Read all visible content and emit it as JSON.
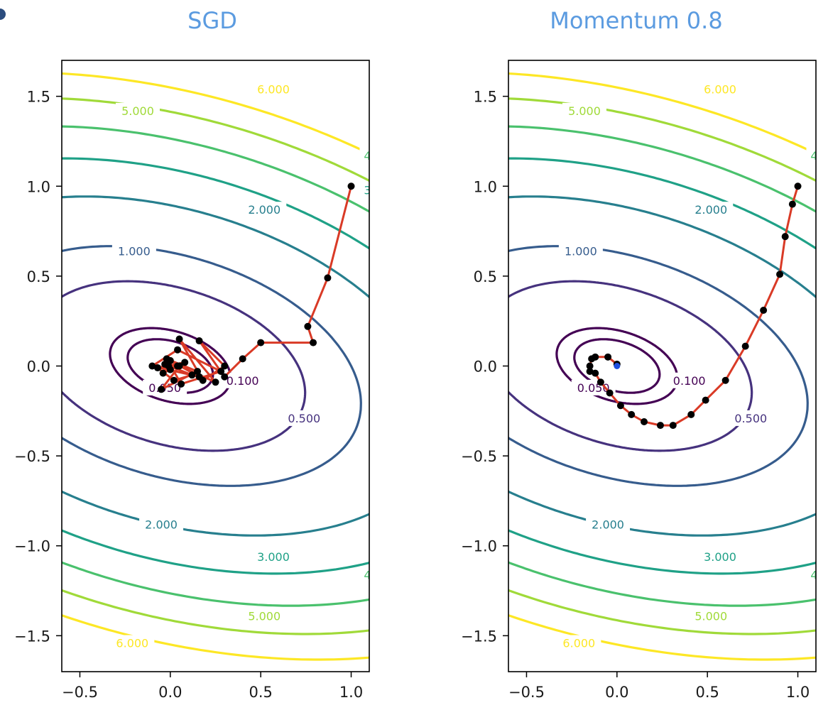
{
  "colors": {
    "title": "#5b9be0",
    "path": "#d93a26",
    "point": "#000000",
    "minimum": "#1f4fe0",
    "levels": [
      "#440154",
      "#46327e",
      "#365c8d",
      "#277f8e",
      "#1fa187",
      "#4ac16d",
      "#a0da39",
      "#fde725"
    ]
  },
  "chart_data": [
    {
      "type": "contour",
      "title": "SGD",
      "xlabel": "",
      "ylabel": "",
      "xlim": [
        -0.6,
        1.1
      ],
      "ylim": [
        -1.7,
        1.7
      ],
      "xticks": [
        "-0.5",
        "0.0",
        "0.5",
        "1.0"
      ],
      "xtick_values": [
        -0.5,
        0.0,
        0.5,
        1.0
      ],
      "yticks": [
        "-1.5",
        "-1.0",
        "-0.5",
        "0.0",
        "0.5",
        "1.0",
        "1.5"
      ],
      "ytick_values": [
        -1.5,
        -1.0,
        -0.5,
        0.0,
        0.5,
        1.0,
        1.5
      ],
      "grid": false,
      "contour_levels": [
        0.05,
        0.1,
        0.5,
        1.0,
        2.0,
        3.0,
        4.0,
        5.0,
        6.0
      ],
      "contour_labels": [
        {
          "text": "0.050",
          "x": -0.03,
          "y": -0.12
        },
        {
          "text": "0.100",
          "x": 0.4,
          "y": -0.08
        },
        {
          "text": "0.500",
          "x": 0.74,
          "y": -0.29
        },
        {
          "text": "1.000",
          "x": -0.2,
          "y": 0.64
        },
        {
          "text": "2.000",
          "x": 0.52,
          "y": 0.87
        },
        {
          "text": "2.000",
          "x": -0.05,
          "y": -0.88
        },
        {
          "text": "3.000",
          "x": 0.57,
          "y": -1.06
        },
        {
          "text": "5.000",
          "x": -0.18,
          "y": 1.42
        },
        {
          "text": "5.000",
          "x": 0.52,
          "y": -1.39
        },
        {
          "text": "6.000",
          "x": 0.57,
          "y": 1.54
        },
        {
          "text": "6.000",
          "x": -0.21,
          "y": -1.54
        },
        {
          "text": "4",
          "x": 1.09,
          "y": 1.17
        },
        {
          "text": "3",
          "x": 1.09,
          "y": 0.98
        },
        {
          "text": "4",
          "x": 1.09,
          "y": -1.16
        }
      ],
      "path": {
        "x": [
          1.0,
          0.87,
          0.76,
          0.79,
          0.5,
          0.4,
          0.3,
          0.16,
          0.3,
          0.18,
          0.05,
          0.25,
          0.05,
          -0.05,
          0.15,
          -0.02,
          0.06,
          0.28,
          0.04,
          -0.1,
          0.16,
          0.0,
          -0.04,
          0.08,
          -0.07,
          0.02,
          0.12,
          -0.03,
          0.04,
          0.0,
          -0.01
        ],
        "y": [
          1.0,
          0.49,
          0.22,
          0.13,
          0.13,
          0.04,
          -0.06,
          0.14,
          0.0,
          -0.08,
          0.15,
          -0.09,
          0.0,
          -0.13,
          -0.03,
          0.04,
          -0.1,
          -0.03,
          0.09,
          0.0,
          -0.06,
          0.03,
          -0.04,
          0.02,
          -0.01,
          -0.08,
          -0.05,
          0.01,
          0.0,
          -0.02,
          0.0
        ]
      }
    },
    {
      "type": "contour",
      "title": "Momentum 0.8",
      "xlabel": "",
      "ylabel": "",
      "xlim": [
        -0.6,
        1.1
      ],
      "ylim": [
        -1.7,
        1.7
      ],
      "xticks": [
        "-0.5",
        "0.0",
        "0.5",
        "1.0"
      ],
      "xtick_values": [
        -0.5,
        0.0,
        0.5,
        1.0
      ],
      "yticks": [
        "-1.5",
        "-1.0",
        "-0.5",
        "0.0",
        "0.5",
        "1.0",
        "1.5"
      ],
      "ytick_values": [
        -1.5,
        -1.0,
        -0.5,
        0.0,
        0.5,
        1.0,
        1.5
      ],
      "grid": false,
      "contour_levels": [
        0.05,
        0.1,
        0.5,
        1.0,
        2.0,
        3.0,
        4.0,
        5.0,
        6.0
      ],
      "contour_labels": [
        {
          "text": "0.050",
          "x": -0.13,
          "y": -0.12
        },
        {
          "text": "0.100",
          "x": 0.4,
          "y": -0.08
        },
        {
          "text": "0.500",
          "x": 0.74,
          "y": -0.29
        },
        {
          "text": "1.000",
          "x": -0.2,
          "y": 0.64
        },
        {
          "text": "2.000",
          "x": 0.52,
          "y": 0.87
        },
        {
          "text": "2.000",
          "x": -0.05,
          "y": -0.88
        },
        {
          "text": "3.000",
          "x": 0.57,
          "y": -1.06
        },
        {
          "text": "5.000",
          "x": -0.18,
          "y": 1.42
        },
        {
          "text": "5.000",
          "x": 0.52,
          "y": -1.39
        },
        {
          "text": "6.000",
          "x": 0.57,
          "y": 1.54
        },
        {
          "text": "6.000",
          "x": -0.21,
          "y": -1.54
        },
        {
          "text": "4",
          "x": 1.09,
          "y": 1.17
        },
        {
          "text": "4",
          "x": 1.09,
          "y": -1.16
        }
      ],
      "path": {
        "x": [
          1.0,
          0.97,
          0.93,
          0.9,
          0.81,
          0.71,
          0.6,
          0.49,
          0.41,
          0.31,
          0.24,
          0.15,
          0.08,
          0.02,
          -0.04,
          -0.09,
          -0.12,
          -0.15,
          -0.15,
          -0.14,
          -0.12,
          -0.05,
          0.0
        ],
        "y": [
          1.0,
          0.9,
          0.72,
          0.51,
          0.31,
          0.11,
          -0.08,
          -0.19,
          -0.27,
          -0.33,
          -0.33,
          -0.31,
          -0.27,
          -0.22,
          -0.15,
          -0.09,
          -0.04,
          -0.03,
          0.0,
          0.04,
          0.05,
          0.05,
          0.01
        ]
      },
      "minimum": {
        "x": 0.0,
        "y": 0.0
      }
    }
  ]
}
